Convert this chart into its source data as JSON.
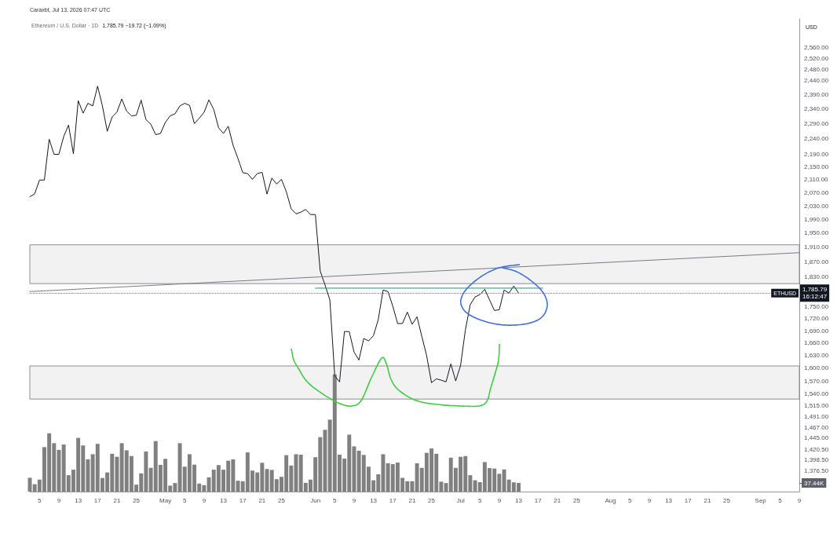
{
  "chart_data": {
    "type": "line",
    "title": "Ethereum / U.S. Dollar · 1D",
    "subtitle": "1,785.79  −19.72 (−1.09%)",
    "ylabel": "USD",
    "annotations": [
      "Caraxbt, Jul 13, 2026 07:47 UTC",
      {
        "text": "ETHUSD",
        "y": 1785.79
      }
    ],
    "log": true,
    "marker": "none",
    "x": [
      "2026-04-03",
      "2026-04-04",
      "2026-04-05",
      "2026-04-06",
      "2026-04-07",
      "2026-04-08",
      "2026-04-09",
      "2026-04-10",
      "2026-04-11",
      "2026-04-12",
      "2026-04-13",
      "2026-04-14",
      "2026-04-15",
      "2026-04-16",
      "2026-04-17",
      "2026-04-18",
      "2026-04-19",
      "2026-04-20",
      "2026-04-21",
      "2026-04-22",
      "2026-04-23",
      "2026-04-24",
      "2026-04-25",
      "2026-04-26",
      "2026-04-27",
      "2026-04-28",
      "2026-04-29",
      "2026-04-30",
      "2026-05-01",
      "2026-05-02",
      "2026-05-03",
      "2026-05-04",
      "2026-05-05",
      "2026-05-06",
      "2026-05-07",
      "2026-05-08",
      "2026-05-09",
      "2026-05-10",
      "2026-05-11",
      "2026-05-12",
      "2026-05-13",
      "2026-05-14",
      "2026-05-15",
      "2026-05-16",
      "2026-05-17",
      "2026-05-18",
      "2026-05-19",
      "2026-05-20",
      "2026-05-21",
      "2026-05-22",
      "2026-05-23",
      "2026-05-24",
      "2026-05-25",
      "2026-05-26",
      "2026-05-27",
      "2026-05-28",
      "2026-05-29",
      "2026-05-30",
      "2026-05-31",
      "2026-06-01",
      "2026-06-02",
      "2026-06-03",
      "2026-06-04",
      "2026-06-05",
      "2026-06-06",
      "2026-06-07",
      "2026-06-08",
      "2026-06-09",
      "2026-06-10",
      "2026-06-11",
      "2026-06-12",
      "2026-06-13",
      "2026-06-14",
      "2026-06-15",
      "2026-06-16",
      "2026-06-17",
      "2026-06-18",
      "2026-06-19",
      "2026-06-20",
      "2026-06-21",
      "2026-06-22",
      "2026-06-23",
      "2026-06-24",
      "2026-06-25",
      "2026-06-26",
      "2026-06-27",
      "2026-06-28",
      "2026-06-29",
      "2026-06-30",
      "2026-07-01",
      "2026-07-02",
      "2026-07-03",
      "2026-07-04",
      "2026-07-05",
      "2026-07-06",
      "2026-07-07",
      "2026-07-08",
      "2026-07-09",
      "2026-07-10",
      "2026-07-11",
      "2026-07-12",
      "2026-07-13"
    ],
    "series": [
      {
        "color": "#131722",
        "values": [
          2057,
          2066,
          2108,
          2108,
          2238,
          2189,
          2189,
          2247,
          2285,
          2191,
          2368,
          2325,
          2359,
          2350,
          2419,
          2350,
          2264,
          2312,
          2329,
          2374,
          2332,
          2316,
          2318,
          2370,
          2303,
          2288,
          2253,
          2257,
          2294,
          2316,
          2323,
          2350,
          2359,
          2352,
          2290,
          2308,
          2328,
          2371,
          2338,
          2276,
          2257,
          2281,
          2218,
          2176,
          2131,
          2128,
          2110,
          2128,
          2132,
          2065,
          2114,
          2096,
          2110,
          2072,
          2021,
          2006,
          2011,
          2019,
          2004,
          2004,
          1845,
          1807,
          1768,
          1582,
          1568,
          1688,
          1688,
          1638,
          1619,
          1671,
          1665,
          1678,
          1718,
          1794,
          1790,
          1752,
          1708,
          1708,
          1737,
          1706,
          1725,
          1676,
          1629,
          1566,
          1575,
          1572,
          1568,
          1610,
          1570,
          1606,
          1692,
          1756,
          1776,
          1782,
          1796,
          1768,
          1741,
          1743,
          1794,
          1786,
          1805,
          1785.79
        ]
      },
      {
        "type": "bar",
        "axis": "y2",
        "color": "#808080",
        "values": [
          60,
          32,
          52,
          193,
          253,
          210,
          181,
          204,
          71,
          95,
          233,
          200,
          140,
          162,
          207,
          59,
          83,
          164,
          151,
          210,
          179,
          154,
          30,
          79,
          174,
          103,
          219,
          116,
          142,
          26,
          37,
          210,
          108,
          162,
          117,
          35,
          28,
          62,
          95,
          115,
          95,
          134,
          140,
          47,
          45,
          170,
          91,
          83,
          125,
          98,
          94,
          54,
          64,
          158,
          113,
          162,
          160,
          38,
          52,
          149,
          236,
          268,
          312,
          508,
          160,
          143,
          247,
          196,
          177,
          159,
          108,
          49,
          75,
          162,
          123,
          119,
          126,
          60,
          45,
          45,
          123,
          103,
          168,
          187,
          164,
          43,
          37,
          147,
          103,
          151,
          154,
          71,
          49,
          41,
          128,
          102,
          100,
          77,
          96,
          52,
          40,
          37.44
        ]
      },
      {
        "color": "#787b86",
        "x": [
          "2026-04-03",
          "2026-09-09"
        ],
        "values": [
          1790,
          1895
        ]
      },
      {
        "color": "#2e8b7a",
        "x": [
          "2026-06-01",
          "2026-07-18"
        ],
        "values": [
          1799,
          1799
        ]
      }
    ],
    "xlim": [
      "2026-04-03",
      "2026-09-09"
    ],
    "xticks": [
      {
        "value": "2026-04-05",
        "label": "5"
      },
      {
        "value": "2026-04-09",
        "label": "9"
      },
      {
        "value": "2026-04-13",
        "label": "13"
      },
      {
        "value": "2026-04-17",
        "label": "17"
      },
      {
        "value": "2026-04-21",
        "label": "21"
      },
      {
        "value": "2026-04-25",
        "label": "25"
      },
      {
        "value": "2026-05-01",
        "label": "May"
      },
      {
        "value": "2026-05-05",
        "label": "5"
      },
      {
        "value": "2026-05-09",
        "label": "9"
      },
      {
        "value": "2026-05-13",
        "label": "13"
      },
      {
        "value": "2026-05-17",
        "label": "17"
      },
      {
        "value": "2026-05-21",
        "label": "21"
      },
      {
        "value": "2026-05-25",
        "label": "25"
      },
      {
        "value": "2026-06-01",
        "label": "Jun"
      },
      {
        "value": "2026-06-05",
        "label": "5"
      },
      {
        "value": "2026-06-09",
        "label": "9"
      },
      {
        "value": "2026-06-13",
        "label": "13"
      },
      {
        "value": "2026-06-17",
        "label": "17"
      },
      {
        "value": "2026-06-21",
        "label": "21"
      },
      {
        "value": "2026-06-25",
        "label": "25"
      },
      {
        "value": "2026-07-01",
        "label": "Jul"
      },
      {
        "value": "2026-07-05",
        "label": "5"
      },
      {
        "value": "2026-07-09",
        "label": "9"
      },
      {
        "value": "2026-07-13",
        "label": "13"
      },
      {
        "value": "2026-07-17",
        "label": "17"
      },
      {
        "value": "2026-07-21",
        "label": "21"
      },
      {
        "value": "2026-07-25",
        "label": "25"
      },
      {
        "value": "2026-08-01",
        "label": "Aug"
      },
      {
        "value": "2026-08-05",
        "label": "5"
      },
      {
        "value": "2026-08-09",
        "label": "9"
      },
      {
        "value": "2026-08-13",
        "label": "13"
      },
      {
        "value": "2026-08-17",
        "label": "17"
      },
      {
        "value": "2026-08-21",
        "label": "21"
      },
      {
        "value": "2026-08-25",
        "label": "25"
      },
      {
        "value": "2026-09-01",
        "label": "Sep"
      },
      {
        "value": "2026-09-05",
        "label": "5"
      },
      {
        "value": "2026-09-09",
        "label": "9"
      }
    ],
    "ylim": [
      1335,
      2670
    ],
    "yticks": [
      {
        "value": 2560,
        "label": "2,560.00"
      },
      {
        "value": 2520,
        "label": "2,520.00"
      },
      {
        "value": 2480,
        "label": "2,480.00"
      },
      {
        "value": 2440,
        "label": "2,440.00"
      },
      {
        "value": 2390,
        "label": "2,390.00"
      },
      {
        "value": 2340,
        "label": "2,340.00"
      },
      {
        "value": 2290,
        "label": "2,290.00"
      },
      {
        "value": 2240,
        "label": "2,240.00"
      },
      {
        "value": 2190,
        "label": "2,190.00"
      },
      {
        "value": 2150,
        "label": "2,150.00"
      },
      {
        "value": 2110,
        "label": "2,110.00"
      },
      {
        "value": 2070,
        "label": "2,070.00"
      },
      {
        "value": 2030,
        "label": "2,030.00"
      },
      {
        "value": 1990,
        "label": "1,990.00"
      },
      {
        "value": 1950,
        "label": "1,950.00"
      },
      {
        "value": 1910,
        "label": "1,910.00"
      },
      {
        "value": 1870,
        "label": "1,870.00"
      },
      {
        "value": 1830,
        "label": "1,830.00"
      },
      {
        "value": 1750,
        "label": "1,750.00"
      },
      {
        "value": 1720,
        "label": "1,720.00"
      },
      {
        "value": 1690,
        "label": "1,690.00"
      },
      {
        "value": 1660,
        "label": "1,660.00"
      },
      {
        "value": 1630,
        "label": "1,630.00"
      },
      {
        "value": 1600,
        "label": "1,600.00"
      },
      {
        "value": 1570,
        "label": "1,570.00"
      },
      {
        "value": 1540,
        "label": "1,540.00"
      },
      {
        "value": 1515,
        "label": "1,515.00"
      },
      {
        "value": 1491,
        "label": "1,491.00"
      },
      {
        "value": 1467,
        "label": "1,467.00"
      },
      {
        "value": 1445,
        "label": "1,445.00"
      },
      {
        "value": 1420.5,
        "label": "1,420.50"
      },
      {
        "value": 1398.5,
        "label": "1,398.50"
      },
      {
        "value": 1376.5,
        "label": "1,376.50"
      }
    ],
    "y2lim": [
      0,
      2050
    ],
    "y2ticks": [
      {
        "value": 37.44,
        "label": "37.44K"
      }
    ],
    "ref_lines": [
      {
        "axis": "y",
        "value": 1785.79,
        "label": "1,785.79\n16:12:47",
        "color": "#787b86",
        "line_style": "dotted"
      }
    ],
    "bands": [
      {
        "axis": "y",
        "from": 1811,
        "to": 1917,
        "color": "#f2f2f2"
      },
      {
        "axis": "y",
        "from": 1529,
        "to": 1605,
        "color": "#f2f2f2"
      }
    ]
  }
}
